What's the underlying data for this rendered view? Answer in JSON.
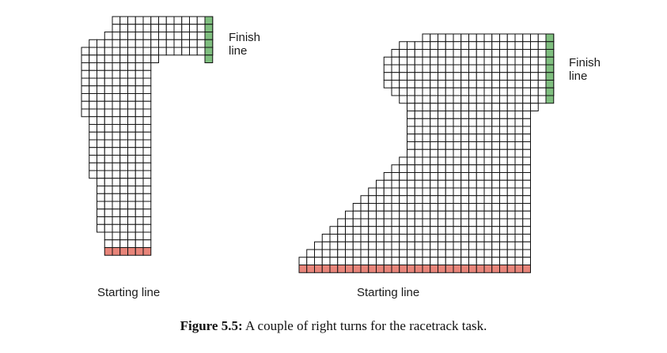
{
  "colors": {
    "grid_line": "#111111",
    "cell_fill": "#ffffff",
    "finish_fill": "#7fbf7f",
    "start_fill": "#e8857a"
  },
  "tracks": [
    {
      "id": "left",
      "finish_label": "Finish\nline",
      "start_label": "Starting line",
      "column_ranges": [
        [
          4,
          16
        ],
        [
          4,
          16
        ],
        [
          3,
          16
        ],
        [
          1,
          16
        ],
        [
          0,
          16
        ],
        [
          0,
          9
        ],
        [
          0,
          8
        ],
        [
          0,
          8
        ],
        [
          0,
          8
        ],
        [
          0,
          8
        ],
        [
          0,
          8
        ],
        [
          0,
          8
        ],
        [
          0,
          8
        ],
        [
          1,
          8
        ],
        [
          1,
          8
        ],
        [
          1,
          8
        ],
        [
          1,
          8
        ],
        [
          1,
          8
        ],
        [
          1,
          8
        ],
        [
          1,
          8
        ],
        [
          1,
          8
        ],
        [
          2,
          8
        ],
        [
          2,
          8
        ],
        [
          2,
          8
        ],
        [
          2,
          8
        ],
        [
          2,
          8
        ],
        [
          2,
          8
        ],
        [
          2,
          8
        ],
        [
          3,
          8
        ],
        [
          3,
          8
        ],
        [
          3,
          8
        ]
      ],
      "finish_rows": 6,
      "start_columns": [
        3,
        8
      ]
    },
    {
      "id": "right",
      "finish_label": "Finish\nline",
      "start_label": "Starting line",
      "column_ranges": [
        [
          16,
          32
        ],
        [
          13,
          32
        ],
        [
          12,
          32
        ],
        [
          11,
          32
        ],
        [
          11,
          32
        ],
        [
          11,
          32
        ],
        [
          11,
          32
        ],
        [
          12,
          32
        ],
        [
          13,
          31
        ],
        [
          14,
          30
        ],
        [
          14,
          29
        ],
        [
          14,
          29
        ],
        [
          14,
          29
        ],
        [
          14,
          29
        ],
        [
          14,
          29
        ],
        [
          14,
          29
        ],
        [
          13,
          29
        ],
        [
          12,
          29
        ],
        [
          11,
          29
        ],
        [
          10,
          29
        ],
        [
          9,
          29
        ],
        [
          8,
          29
        ],
        [
          7,
          29
        ],
        [
          6,
          29
        ],
        [
          5,
          29
        ],
        [
          4,
          29
        ],
        [
          3,
          29
        ],
        [
          2,
          29
        ],
        [
          1,
          29
        ],
        [
          0,
          29
        ],
        [
          0,
          29
        ]
      ],
      "finish_rows": 9,
      "start_columns": [
        0,
        29
      ]
    }
  ],
  "caption": {
    "label": "Figure 5.5:",
    "text": " A couple of right turns for the racetrack task."
  }
}
